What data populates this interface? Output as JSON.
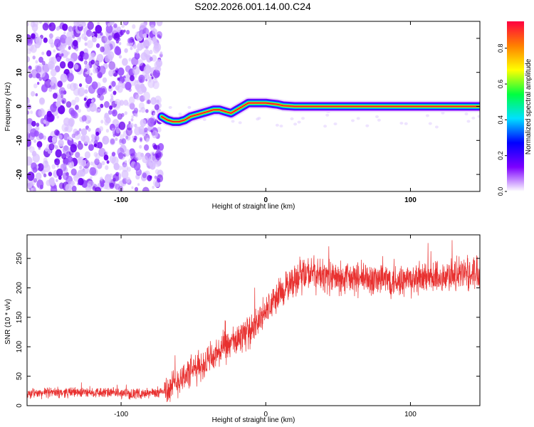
{
  "figure_title": "S202.2026.001.14.00.C24",
  "chart_data": [
    {
      "type": "heatmap",
      "name": "spectrogram",
      "xlabel": "Height of straight line (km)",
      "ylabel": "Frequency (Hz)",
      "xlim": [
        -165,
        148
      ],
      "ylim": [
        -25,
        25
      ],
      "xticks": [
        -100,
        0,
        100
      ],
      "yticks": [
        -20,
        -10,
        0,
        10,
        20
      ],
      "noise_region_x": [
        -165,
        -72
      ],
      "signal_track": {
        "x": [
          -72,
          -68,
          -64,
          -60,
          -56,
          -52,
          -48,
          -44,
          -40,
          -36,
          -32,
          -28,
          -24,
          -20,
          -16,
          -12,
          -8,
          -4,
          0,
          4,
          8,
          12,
          20,
          40,
          60,
          80,
          100,
          120,
          148
        ],
        "y": [
          -3,
          -4,
          -4.5,
          -4.5,
          -4,
          -3,
          -2.5,
          -2,
          -1.5,
          -1,
          -1,
          -1.5,
          -2,
          -1,
          0,
          1,
          1,
          1,
          1,
          0.8,
          0.6,
          0.2,
          0,
          0,
          0,
          0,
          0,
          0,
          0
        ]
      }
    },
    {
      "type": "colorbar",
      "label": "Normalized spectral amplitude",
      "range": [
        0,
        0.95
      ],
      "ticks": [
        0.0,
        0.2,
        0.4,
        0.6,
        0.8
      ],
      "tick_labels": [
        "0.0",
        "0.2",
        "0.4",
        "0.6",
        "0.8"
      ],
      "colors": [
        "#ffffff",
        "#7d00ff",
        "#0000ff",
        "#00e0ff",
        "#00ff40",
        "#ffff00",
        "#ff8000",
        "#ff0040"
      ]
    },
    {
      "type": "line",
      "name": "snr",
      "xlabel": "Height of straight line (km)",
      "ylabel": "SNR (10 * v/v)",
      "xlim": [
        -165,
        148
      ],
      "ylim": [
        0,
        290
      ],
      "xticks": [
        -100,
        0,
        100
      ],
      "yticks": [
        0,
        50,
        100,
        150,
        200,
        250
      ],
      "series": [
        {
          "name": "SNR",
          "color": "#e8302f",
          "x": [
            -165,
            -150,
            -130,
            -110,
            -90,
            -75,
            -65,
            -60,
            -50,
            -40,
            -30,
            -20,
            -10,
            0,
            10,
            20,
            30,
            40,
            50,
            60,
            80,
            100,
            120,
            140,
            148
          ],
          "y": [
            20,
            22,
            23,
            22,
            20,
            22,
            30,
            45,
            60,
            75,
            95,
            110,
            130,
            160,
            190,
            215,
            225,
            220,
            215,
            215,
            215,
            212,
            218,
            225,
            230
          ]
        }
      ]
    }
  ]
}
